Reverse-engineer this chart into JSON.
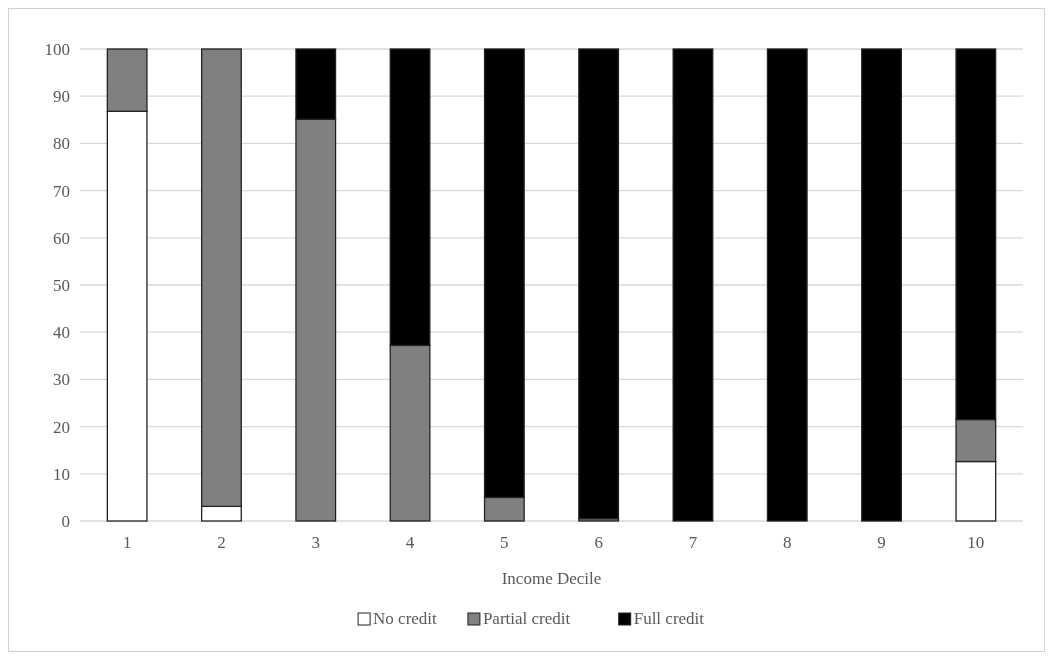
{
  "chart_data": {
    "type": "bar",
    "stacked": true,
    "xlabel": "Income Decile",
    "categories": [
      "1",
      "2",
      "3",
      "4",
      "5",
      "6",
      "7",
      "8",
      "9",
      "10"
    ],
    "series": [
      {
        "name": "No credit",
        "color": "#ffffff",
        "values": [
          86.8,
          3.1,
          0,
          0,
          0,
          0,
          0,
          0,
          0,
          12.6
        ]
      },
      {
        "name": "Partial credit",
        "color": "#808080",
        "values": [
          13.2,
          96.9,
          85.1,
          37.2,
          5.0,
          0.5,
          0,
          0,
          0,
          8.9
        ]
      },
      {
        "name": "Full credit",
        "color": "#000000",
        "values": [
          0,
          0,
          14.9,
          62.8,
          95.0,
          99.5,
          100,
          100,
          100,
          78.5
        ]
      }
    ],
    "ylim": [
      0,
      100
    ],
    "yticks": [
      0,
      10,
      20,
      30,
      40,
      50,
      60,
      70,
      80,
      90,
      100
    ],
    "grid": "y",
    "legend": "bottom"
  }
}
